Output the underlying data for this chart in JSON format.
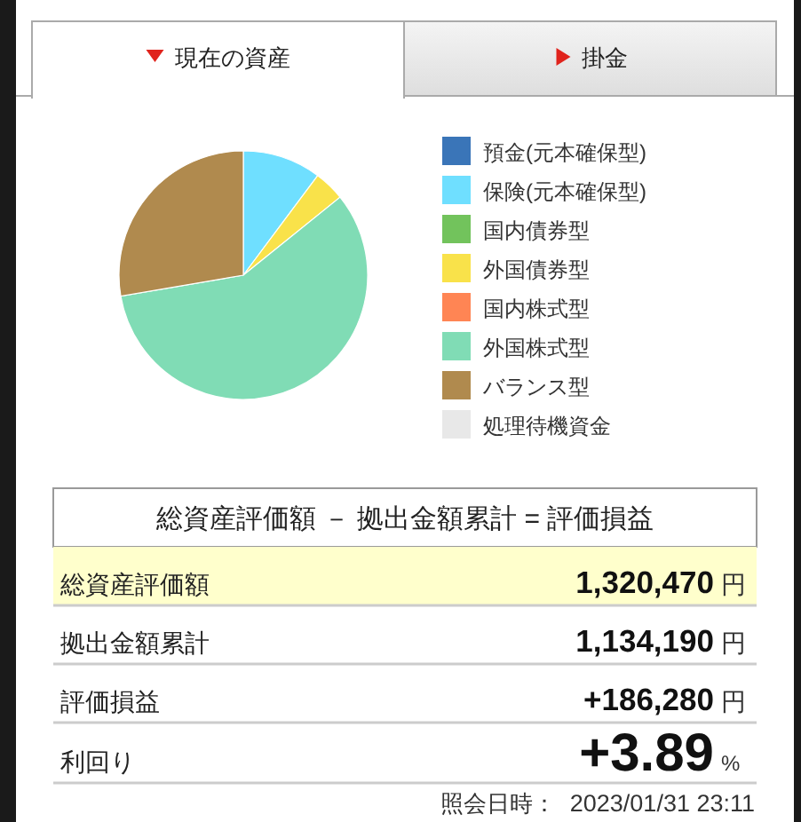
{
  "chart_data": [
    {
      "type": "pie",
      "annotations": [
        "現在の資産",
        "掛金"
      ],
      "categories": [
        "預金(元本確保型)",
        "保険(元本確保型)",
        "国内債券型",
        "外国債券型",
        "国内株式型",
        "外国株式型",
        "バランス型",
        "処理待機資金"
      ],
      "values": [
        0,
        10.2,
        0,
        4.0,
        0,
        58.1,
        27.7,
        0
      ],
      "colors": [
        "#3a75b8",
        "#6fdfff",
        "#72c35c",
        "#f9e24a",
        "#ff8554",
        "#80dcb5",
        "#b08a4e",
        "#e8e8e8"
      ],
      "legend": "right"
    },
    {
      "type": "other",
      "title": "総資産評価額 － 拠出金額累計 = 評価損益",
      "annotations": [
        "総資産評価額",
        "1,320,470",
        "円",
        "拠出金額累計",
        "1,134,190",
        "円",
        "評価損益",
        "+186,280",
        "円",
        "利回り",
        "+3.89",
        "%",
        "照会日時：",
        "2023/01/31 23:11"
      ]
    }
  ]
}
